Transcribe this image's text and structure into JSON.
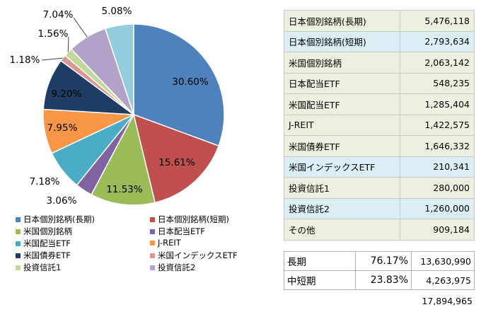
{
  "chart_data": {
    "type": "pie",
    "slices": [
      {
        "label": "日本個別銘柄(長期)",
        "value": 30.6,
        "display": "30.60%",
        "color": "#4f81bd"
      },
      {
        "label": "日本個別銘柄(短期)",
        "value": 15.61,
        "display": "15.61%",
        "color": "#c0504d"
      },
      {
        "label": "米国個別銘柄",
        "value": 11.53,
        "display": "11.53%",
        "color": "#9bbb59"
      },
      {
        "label": "日本配当ETF",
        "value": 3.06,
        "display": "3.06%",
        "color": "#8064a2"
      },
      {
        "label": "米国配当ETF",
        "value": 7.18,
        "display": "7.18%",
        "color": "#4bacc6"
      },
      {
        "label": "J-REIT",
        "value": 7.95,
        "display": "7.95%",
        "color": "#f79646"
      },
      {
        "label": "米国債券ETF",
        "value": 9.2,
        "display": "9.20%",
        "color": "#1f3c64"
      },
      {
        "label": "米国インデックスETF",
        "value": 1.18,
        "display": "1.18%",
        "color": "#d99694"
      },
      {
        "label": "投資信託1",
        "value": 1.56,
        "display": "1.56%",
        "color": "#c3d69b"
      },
      {
        "label": "投資信託2",
        "value": 7.04,
        "display": "7.04%",
        "color": "#b2a2c7"
      },
      {
        "label": "その他",
        "value": 5.08,
        "display": "5.08%",
        "color": "#93cddd"
      }
    ]
  },
  "legend": [
    {
      "label": "日本個別銘柄(長期)",
      "color": "#4f81bd"
    },
    {
      "label": "日本個別銘柄(短期)",
      "color": "#c0504d"
    },
    {
      "label": "米国個別銘柄",
      "color": "#9bbb59"
    },
    {
      "label": "日本配当ETF",
      "color": "#8064a2"
    },
    {
      "label": "米国配当ETF",
      "color": "#4bacc6"
    },
    {
      "label": "J-REIT",
      "color": "#f79646"
    },
    {
      "label": "米国債券ETF",
      "color": "#1f3c64"
    },
    {
      "label": "米国インデックスETF",
      "color": "#d99694"
    },
    {
      "label": "投資信託1",
      "color": "#c3d69b"
    },
    {
      "label": "投資信託2",
      "color": "#b2a2c7"
    }
  ],
  "asset_table": [
    {
      "name": "日本個別銘柄(長期)",
      "amount": "5,476,118",
      "bg": "#ebf1de"
    },
    {
      "name": "日本個別銘柄(短期)",
      "amount": "2,793,634",
      "bg": "#daeef3"
    },
    {
      "name": "米国個別銘柄",
      "amount": "2,063,142",
      "bg": "#ebf1de"
    },
    {
      "name": "日本配当ETF",
      "amount": "548,235",
      "bg": "#ebf1de"
    },
    {
      "name": "米国配当ETF",
      "amount": "1,285,404",
      "bg": "#ebf1de"
    },
    {
      "name": "J-REIT",
      "amount": "1,422,575",
      "bg": "#ebf1de"
    },
    {
      "name": "米国債券ETF",
      "amount": "1,646,332",
      "bg": "#ebf1de"
    },
    {
      "name": "米国インデックスETF",
      "amount": "210,341",
      "bg": "#daeef3"
    },
    {
      "name": "投資信託1",
      "amount": "280,000",
      "bg": "#ebf1de"
    },
    {
      "name": "投資信託2",
      "amount": "1,260,000",
      "bg": "#daeef3"
    },
    {
      "name": "その他",
      "amount": "909,184",
      "bg": "#ebf1de"
    }
  ],
  "term_table": [
    {
      "name": "長期",
      "percent": "76.17%",
      "amount": "13,630,990"
    },
    {
      "name": "中短期",
      "percent": "23.83%",
      "amount": "4,263,975"
    }
  ],
  "total": "17,894,965"
}
